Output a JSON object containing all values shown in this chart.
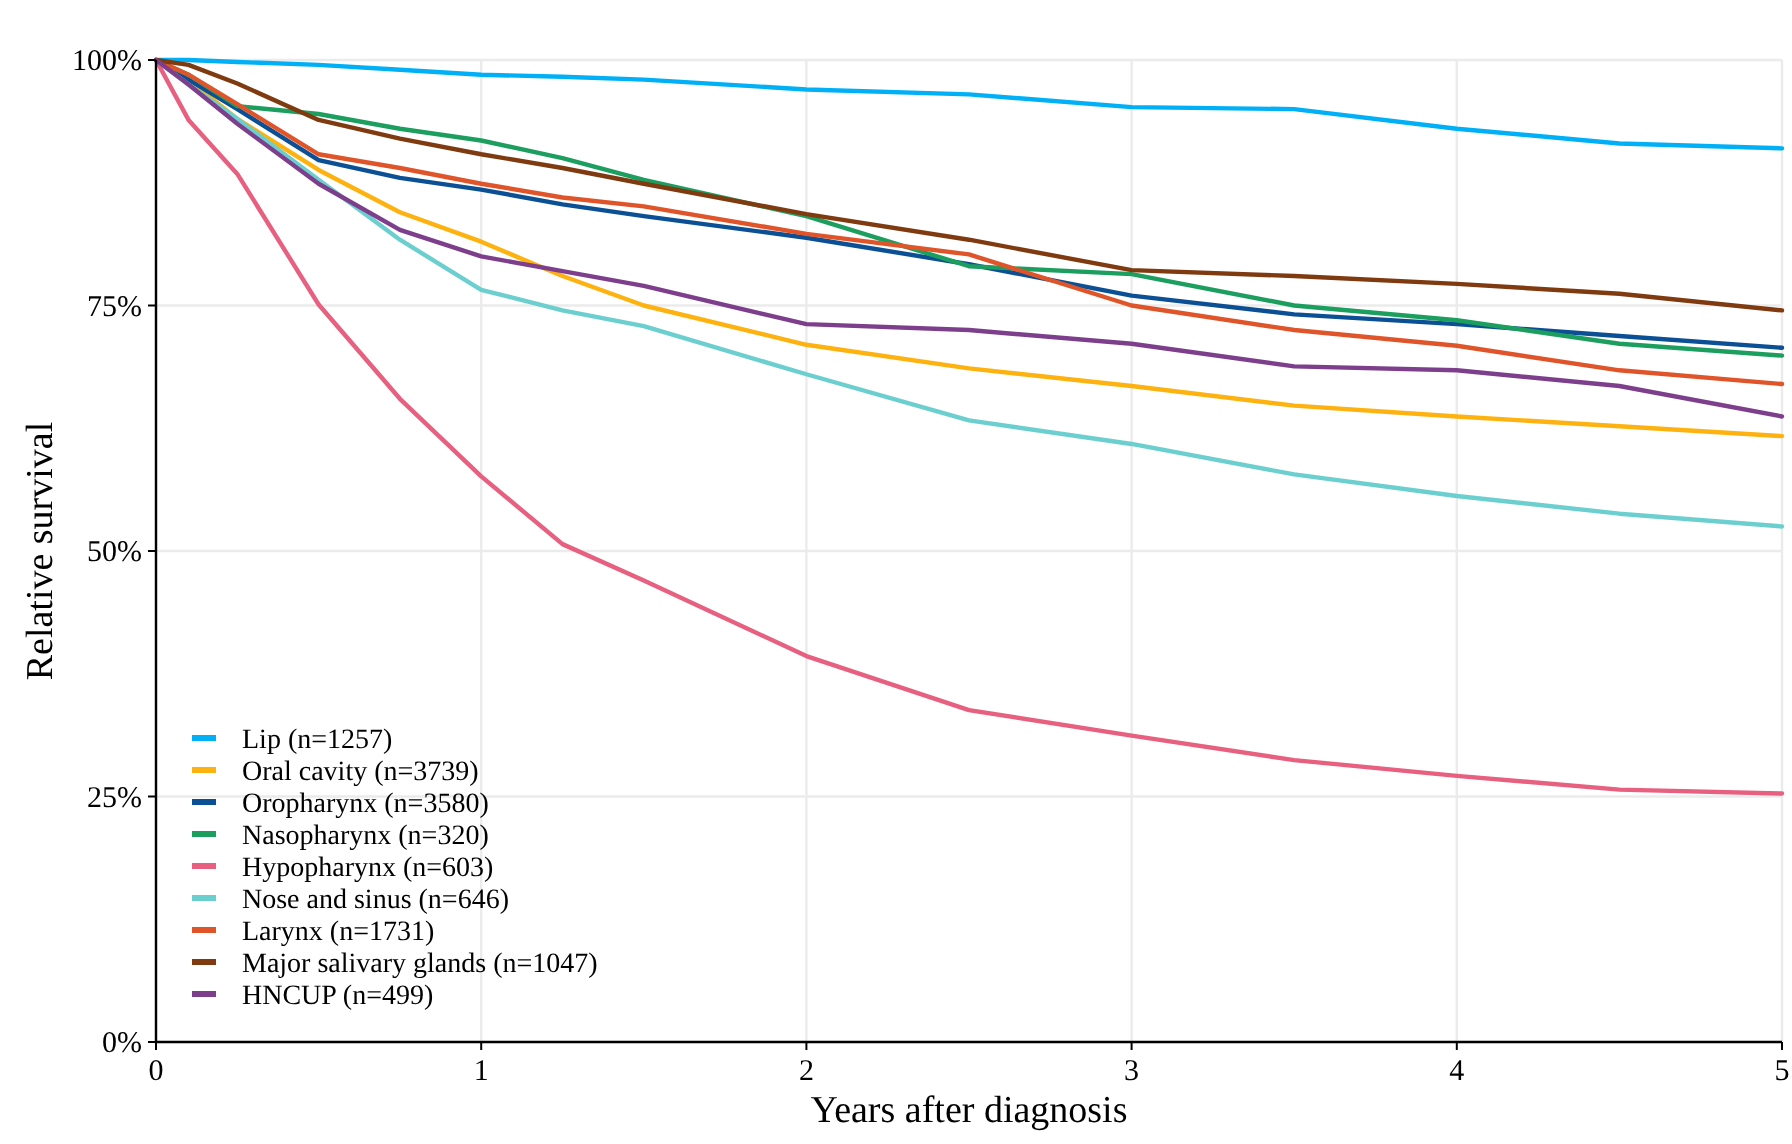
{
  "chart_data": {
    "type": "line",
    "xlabel": "Years after diagnosis",
    "ylabel": "Relative survival",
    "x": [
      0,
      0.1,
      0.25,
      0.5,
      0.75,
      1,
      1.25,
      1.5,
      2,
      2.5,
      3,
      3.5,
      4,
      4.5,
      5
    ],
    "series": [
      {
        "name": "Lip (n=1257)",
        "color": "#00b0f6",
        "values": [
          100,
          100,
          99.8,
          99.5,
          99,
          98.5,
          98.3,
          98,
          97,
          96.5,
          95.2,
          95,
          93,
          91.5,
          91
        ]
      },
      {
        "name": "Oral cavity (n=3739)",
        "color": "#fdb20f",
        "values": [
          100,
          98,
          94,
          88.8,
          84.5,
          81.5,
          78,
          75,
          71,
          68.6,
          66.8,
          64.8,
          63.7,
          62.7,
          61.7
        ]
      },
      {
        "name": "Oropharynx (n=3580)",
        "color": "#0b4f94",
        "values": [
          100,
          98,
          95,
          89.8,
          88,
          86.8,
          85.3,
          84.1,
          81.9,
          79.2,
          76,
          74.1,
          73.1,
          71.9,
          70.7
        ]
      },
      {
        "name": "Nasopharynx (n=320)",
        "color": "#1b9e5e",
        "values": [
          100,
          98.5,
          95.3,
          94.5,
          93,
          91.8,
          90,
          87.8,
          84.1,
          79,
          78.2,
          75,
          73.5,
          71.1,
          69.9
        ]
      },
      {
        "name": "Hypopharynx (n=603)",
        "color": "#e7607f",
        "values": [
          100,
          93.9,
          88.4,
          75.1,
          65.5,
          57.6,
          50.7,
          47,
          39.3,
          33.8,
          31.2,
          28.7,
          27.1,
          25.7,
          25.3
        ]
      },
      {
        "name": "Nose and sinus (n=646)",
        "color": "#6ccfcf",
        "values": [
          100,
          97.5,
          94,
          87.8,
          81.7,
          76.6,
          74.5,
          72.9,
          68,
          63.3,
          60.9,
          57.8,
          55.6,
          53.8,
          52.5
        ]
      },
      {
        "name": "Larynx (n=1731)",
        "color": "#e0542a",
        "values": [
          100,
          98.5,
          95.5,
          90.4,
          89,
          87.4,
          86,
          85.1,
          82.3,
          80.2,
          75,
          72.5,
          70.9,
          68.4,
          67
        ]
      },
      {
        "name": "Major salivary glands (n=1047)",
        "color": "#7f3a10",
        "values": [
          100,
          99.5,
          97.6,
          93.9,
          92,
          90.4,
          89,
          87.4,
          84.3,
          81.7,
          78.6,
          78,
          77.2,
          76.2,
          74.5
        ]
      },
      {
        "name": "HNCUP (n=499)",
        "color": "#7d3f8c",
        "values": [
          100,
          97.5,
          93.5,
          87.4,
          82.7,
          80,
          78.5,
          77,
          73.1,
          72.5,
          71.1,
          68.8,
          68.4,
          66.8,
          63.7
        ]
      }
    ],
    "xlim": [
      0,
      5
    ],
    "xticks": [
      0,
      1,
      2,
      3,
      4,
      5
    ],
    "ylim": [
      0,
      100
    ],
    "yticks": [
      {
        "value": 0,
        "label": "0%"
      },
      {
        "value": 25,
        "label": "25%"
      },
      {
        "value": 50,
        "label": "50%"
      },
      {
        "value": 75,
        "label": "75%"
      },
      {
        "value": 100,
        "label": "100%"
      }
    ],
    "grid": true,
    "legend": "bottom left",
    "line_style": "solid"
  }
}
